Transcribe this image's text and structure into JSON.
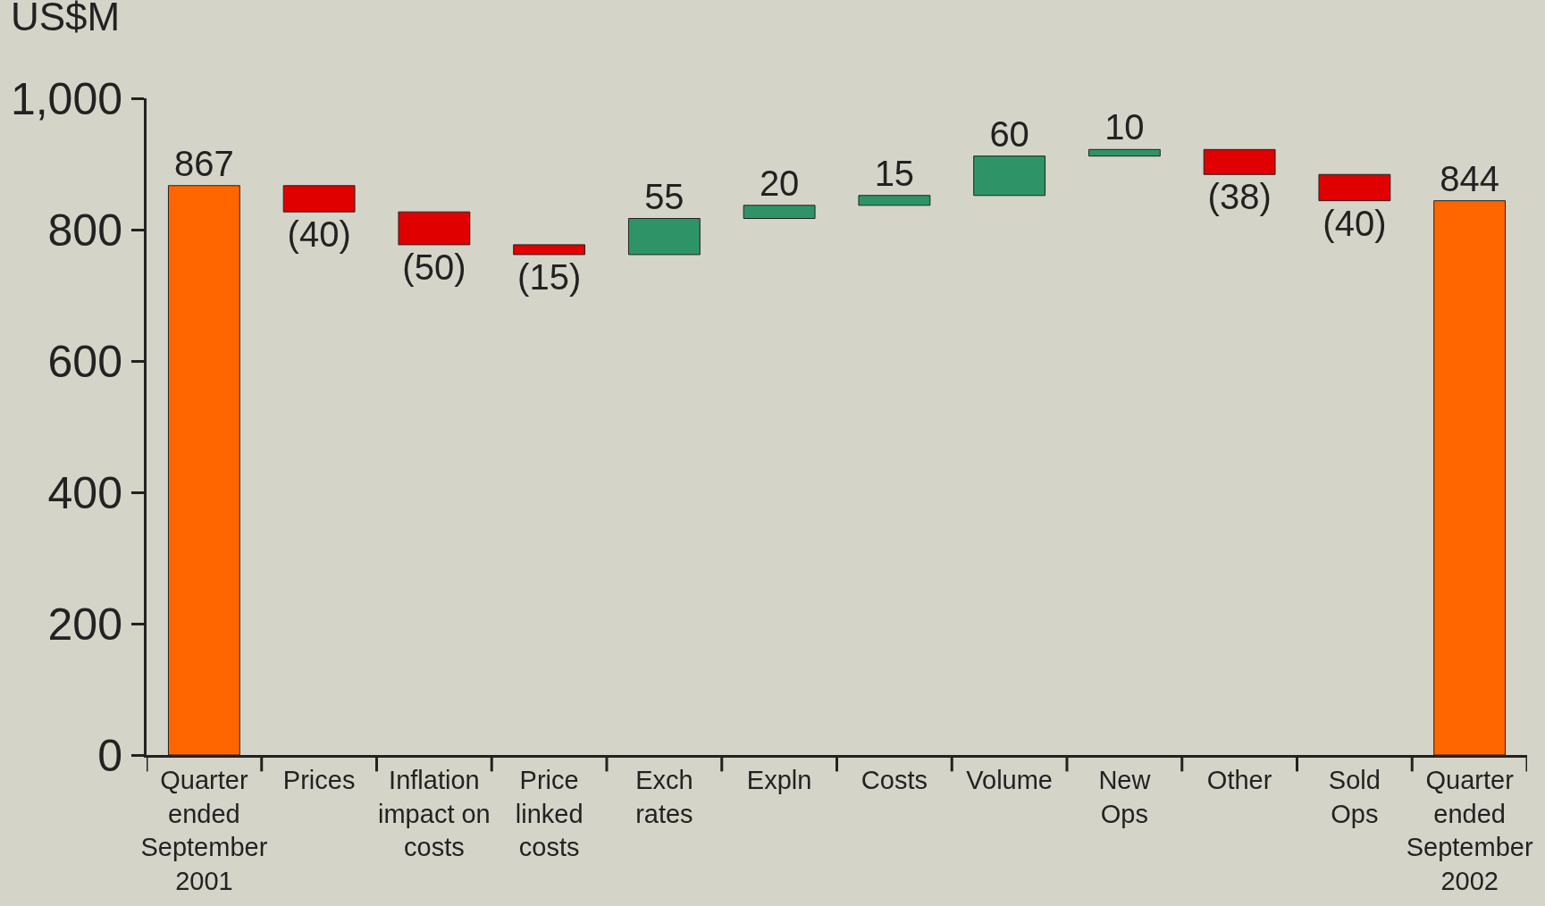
{
  "chart_data": {
    "type": "bar",
    "ylabel": "US$M",
    "categories": [
      "Quarter\nended\nSeptember\n2001",
      "Prices",
      "Inflation\nimpact on\ncosts",
      "Price\nlinked\ncosts",
      "Exch\nrates",
      "Expln",
      "Costs",
      "Volume",
      "New\nOps",
      "Other",
      "Sold\nOps",
      "Quarter\nended\nSeptember\n2002"
    ],
    "values": [
      867,
      -40,
      -50,
      -15,
      55,
      20,
      15,
      60,
      10,
      -38,
      -40,
      844
    ],
    "base": [
      0,
      867,
      827,
      777,
      762,
      817,
      837,
      852,
      912,
      922,
      884,
      0
    ],
    "colors": [
      "#ff6600",
      "#e00000",
      "#e00000",
      "#e00000",
      "#2e9467",
      "#2e9467",
      "#2e9467",
      "#2e9467",
      "#2e9467",
      "#e00000",
      "#e00000",
      "#ff6600"
    ],
    "value_labels": [
      "867",
      "(40)",
      "(50)",
      "(15)",
      "55",
      "20",
      "15",
      "60",
      "10",
      "(38)",
      "(40)",
      "844"
    ],
    "ylim": [
      0,
      1000
    ],
    "yticks": [
      0,
      200,
      400,
      600,
      800,
      {
        "value": 1000,
        "label": "1,000"
      }
    ],
    "grid": false,
    "legend": false
  }
}
